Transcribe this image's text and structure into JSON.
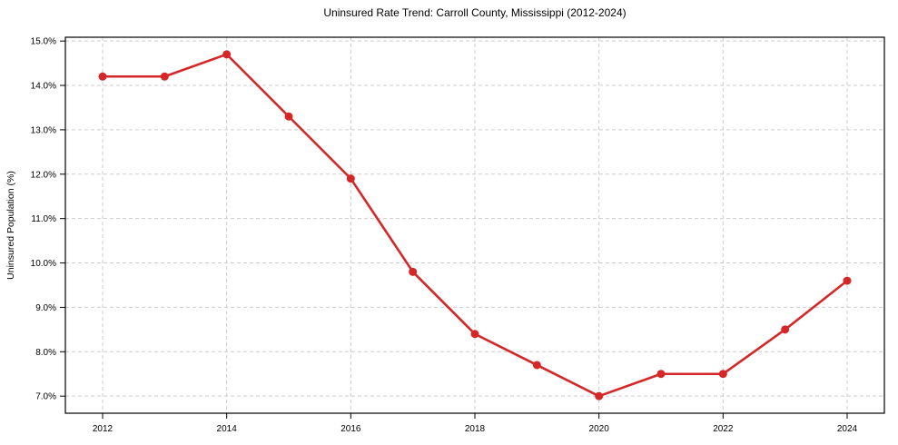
{
  "chart": {
    "title": "Uninsured Rate Trend: Carroll County, Mississippi (2012-2024)",
    "ylabel": "Uninsured Population (%)"
  },
  "chart_data": {
    "type": "line",
    "title": "Uninsured Rate Trend: Carroll County, Mississippi (2012-2024)",
    "xlabel": "",
    "ylabel": "Uninsured Population (%)",
    "x": [
      2012,
      2013,
      2014,
      2015,
      2016,
      2017,
      2018,
      2019,
      2020,
      2021,
      2022,
      2023,
      2024
    ],
    "values": [
      14.2,
      14.2,
      14.7,
      13.3,
      11.9,
      9.8,
      8.4,
      7.7,
      7.0,
      7.5,
      7.5,
      8.5,
      9.6
    ],
    "xlim": [
      2011.4,
      2024.6
    ],
    "ylim": [
      6.615,
      15.085
    ],
    "xticks": [
      2012,
      2014,
      2016,
      2018,
      2020,
      2022,
      2024
    ],
    "xtick_labels": [
      "2012",
      "2014",
      "2016",
      "2018",
      "2020",
      "2022",
      "2024"
    ],
    "yticks": [
      7,
      8,
      9,
      10,
      11,
      12,
      13,
      14,
      15
    ],
    "ytick_labels": [
      "7.0%",
      "8.0%",
      "9.0%",
      "10.0%",
      "11.0%",
      "12.0%",
      "13.0%",
      "14.0%",
      "15.0%"
    ],
    "grid": true,
    "grid_color": "#cccccc",
    "line_color": "#d62728",
    "marker": "circle",
    "legend_position": "none"
  }
}
